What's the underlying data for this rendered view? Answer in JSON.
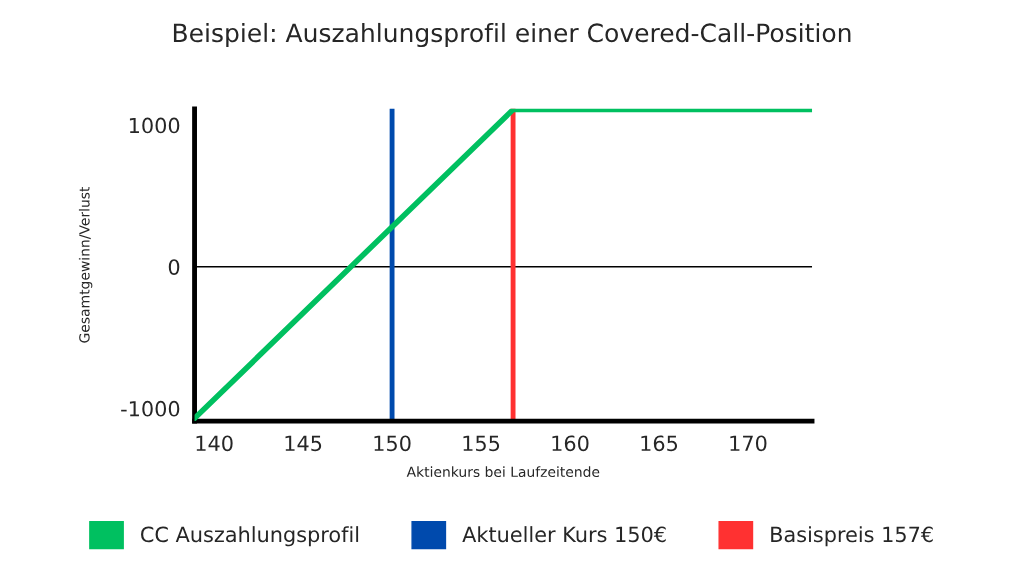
{
  "chart_data": {
    "type": "line",
    "title": "Beispiel: Auszahlungsprofil einer Covered-Call-Position",
    "xlabel": "Aktienkurs bei Laufzeitende",
    "ylabel": "Gesamtgewinn/Verlust",
    "series": [
      {
        "name": "CC Auszahlungsprofil",
        "color": "#00c060",
        "x": [
          138.9,
          156.8,
          173.6
        ],
        "values": [
          -1070,
          1110,
          1110
        ]
      }
    ],
    "ref_lines": [
      {
        "axis": "x",
        "value": 150,
        "label": "Aktueller Kurs 150€",
        "color": "#004aad"
      },
      {
        "axis": "x",
        "value": 156.8,
        "label": "Basispreis 157€",
        "color": "#ff3131"
      },
      {
        "axis": "y",
        "value": 0,
        "color": "#000000"
      }
    ],
    "xlim": [
      138.9,
      173.6
    ],
    "ylim": [
      -1090,
      1115
    ],
    "xticks": [
      140,
      145,
      150,
      155,
      160,
      165,
      170
    ],
    "yticks": [
      -1000,
      0,
      1000
    ],
    "grid": false,
    "legend": "bottom",
    "marker": "none",
    "line_style": "solid"
  }
}
